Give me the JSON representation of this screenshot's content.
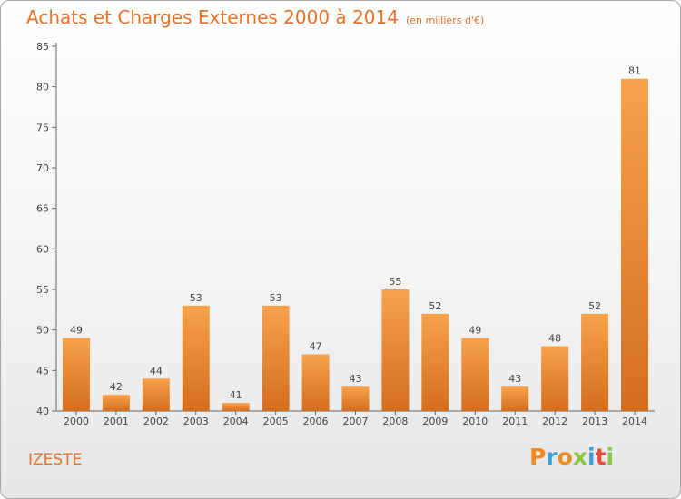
{
  "title": "Achats et Charges Externes 2000 à 2014",
  "unit": "(en milliers d'€)",
  "commune": "IZESTE",
  "logo": {
    "letters": [
      "P",
      "r",
      "o",
      "x",
      "i",
      "t",
      "i"
    ],
    "colors": [
      "#f08a24",
      "#3aa1de",
      "#f08a24",
      "#8cc63f",
      "#3aa1de",
      "#e84e3c",
      "#8cc63f"
    ]
  },
  "colors": {
    "bar_light": "#f7a24a",
    "bar_dark": "#d46e1e",
    "title": "#e8722a"
  },
  "chart_data": {
    "type": "bar",
    "categories": [
      "2000",
      "2001",
      "2002",
      "2003",
      "2004",
      "2005",
      "2006",
      "2007",
      "2008",
      "2009",
      "2010",
      "2011",
      "2012",
      "2013",
      "2014"
    ],
    "values": [
      49,
      42,
      44,
      53,
      41,
      53,
      47,
      43,
      55,
      52,
      49,
      43,
      48,
      52,
      81
    ],
    "title": "Achats et Charges Externes 2000 à 2014",
    "xlabel": "",
    "ylabel": "",
    "ylim": [
      40,
      85
    ],
    "yticks": [
      40,
      45,
      50,
      55,
      60,
      65,
      70,
      75,
      80,
      85
    ],
    "grid": false,
    "legend": "none"
  }
}
